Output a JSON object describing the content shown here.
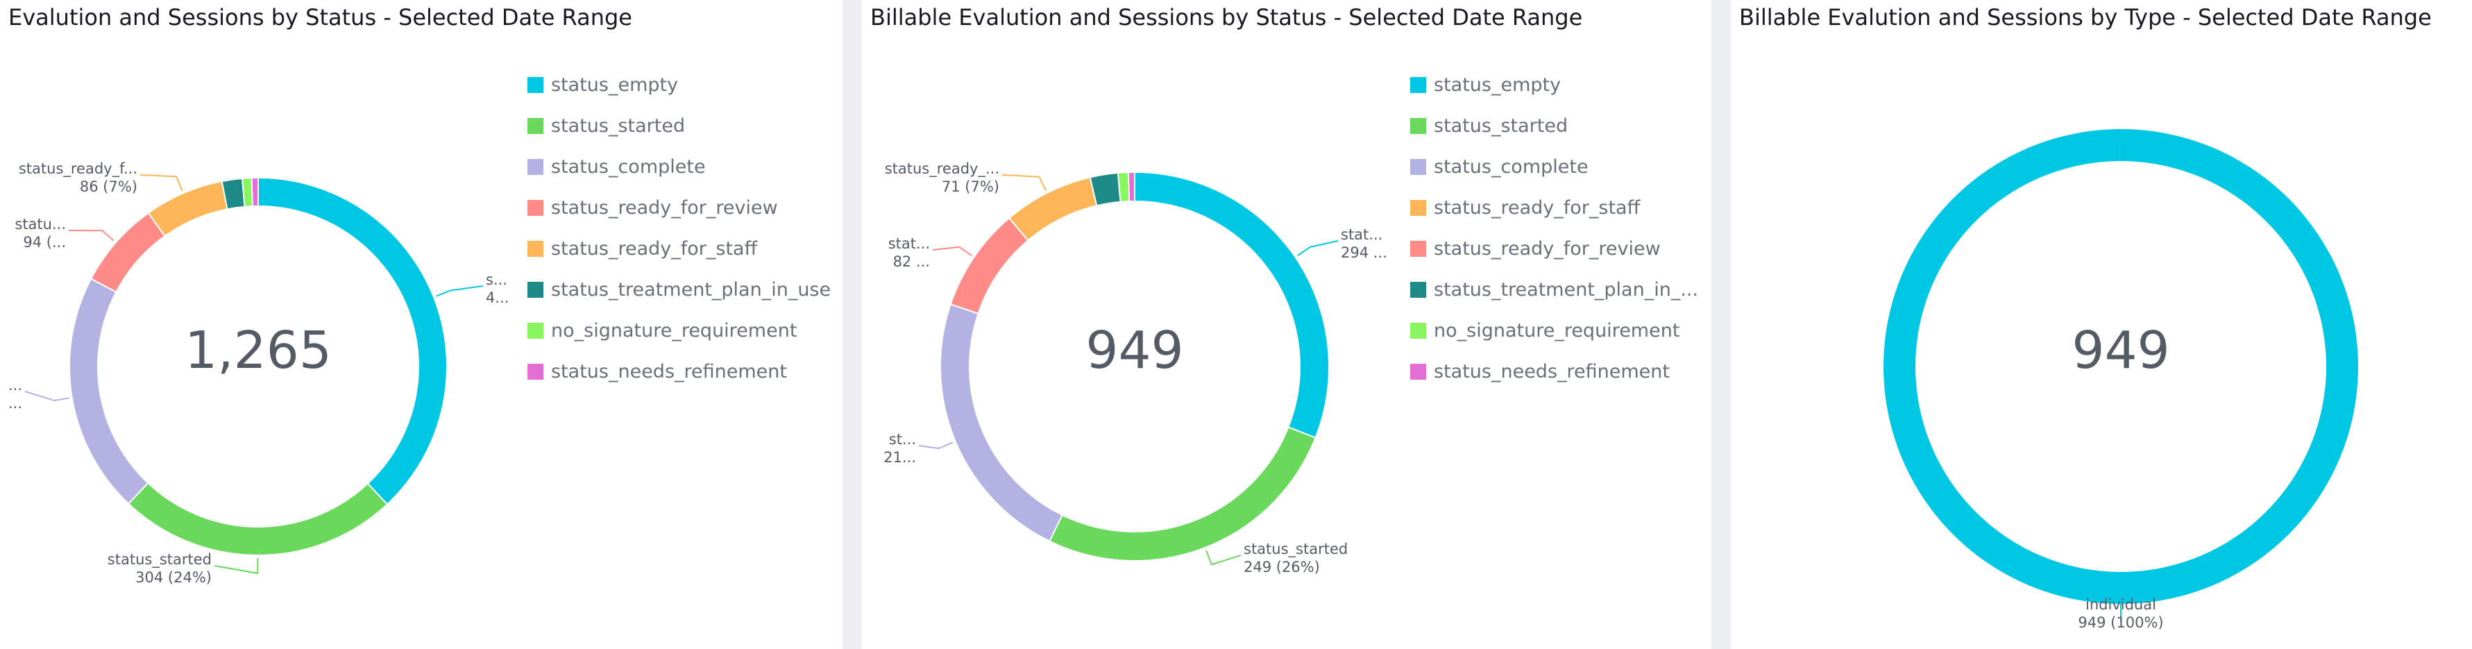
{
  "colors": {
    "status_empty": "#00c8e4",
    "status_started": "#6ad85b",
    "status_complete": "#b3b2e2",
    "status_ready_for_review": "#fe8b87",
    "status_ready_for_staff": "#fcb557",
    "status_treatment_plan_in_use": "#1e8a87",
    "no_signature_requirement": "#86f55e",
    "status_needs_refinement": "#e270d4",
    "individual": "#00c8e4"
  },
  "charts": [
    {
      "title": "Evalution and Sessions by Status - Selected Date Range",
      "center_label": "1,265",
      "legend": [
        "status_empty",
        "status_started",
        "status_complete",
        "status_ready_for_review",
        "status_ready_for_staff",
        "status_treatment_plan_in_use",
        "no_signature_requirement",
        "status_needs_refinement"
      ],
      "labels": [
        {
          "name": "s...",
          "value": "4..."
        },
        {
          "name": "status_started",
          "value": "304 (24%)"
        },
        {
          "name": "...",
          "value": "..."
        },
        {
          "name": "statu...",
          "value": "94 (..."
        },
        {
          "name": "status_ready_f...",
          "value": "86 (7%)"
        }
      ]
    },
    {
      "title": "Billable Evalution and Sessions by Status - Selected Date Range",
      "center_label": "949",
      "legend": [
        "status_empty",
        "status_started",
        "status_complete",
        "status_ready_for_staff",
        "status_ready_for_review",
        "status_treatment_plan_in_...",
        "no_signature_requirement",
        "status_needs_refinement"
      ],
      "labels": [
        {
          "name": "stat...",
          "value": "294 ..."
        },
        {
          "name": "status_started",
          "value": "249 (26%)"
        },
        {
          "name": "st...",
          "value": "21..."
        },
        {
          "name": "stat...",
          "value": "82 ..."
        },
        {
          "name": "status_ready_...",
          "value": "71 (7%)"
        }
      ]
    },
    {
      "title": "Billable Evalution and Sessions by Type - Selected Date Range",
      "center_label": "949",
      "legend": [],
      "labels": [
        {
          "name": "individual",
          "value": "949 (100%)"
        }
      ]
    }
  ],
  "chart_data": [
    {
      "type": "pie",
      "donut": true,
      "title": "Evalution and Sessions by Status - Selected Date Range",
      "total": 1265,
      "categories": [
        "status_empty",
        "status_started",
        "status_complete",
        "status_ready_for_review",
        "status_ready_for_staff",
        "status_treatment_plan_in_use",
        "no_signature_requirement",
        "status_needs_refinement"
      ],
      "values": [
        481,
        304,
        261,
        94,
        86,
        22,
        10,
        7
      ],
      "legend_position": "right"
    },
    {
      "type": "pie",
      "donut": true,
      "title": "Billable Evalution and Sessions by Status - Selected Date Range",
      "total": 949,
      "categories": [
        "status_empty",
        "status_started",
        "status_complete",
        "status_ready_for_review",
        "status_ready_for_staff",
        "status_treatment_plan_in_use",
        "no_signature_requirement",
        "status_needs_refinement"
      ],
      "values": [
        294,
        249,
        218,
        82,
        71,
        22,
        8,
        5
      ],
      "legend_position": "right"
    },
    {
      "type": "pie",
      "donut": true,
      "title": "Billable Evalution and Sessions by Type - Selected Date Range",
      "total": 949,
      "categories": [
        "individual"
      ],
      "values": [
        949
      ],
      "legend_position": "none"
    }
  ]
}
